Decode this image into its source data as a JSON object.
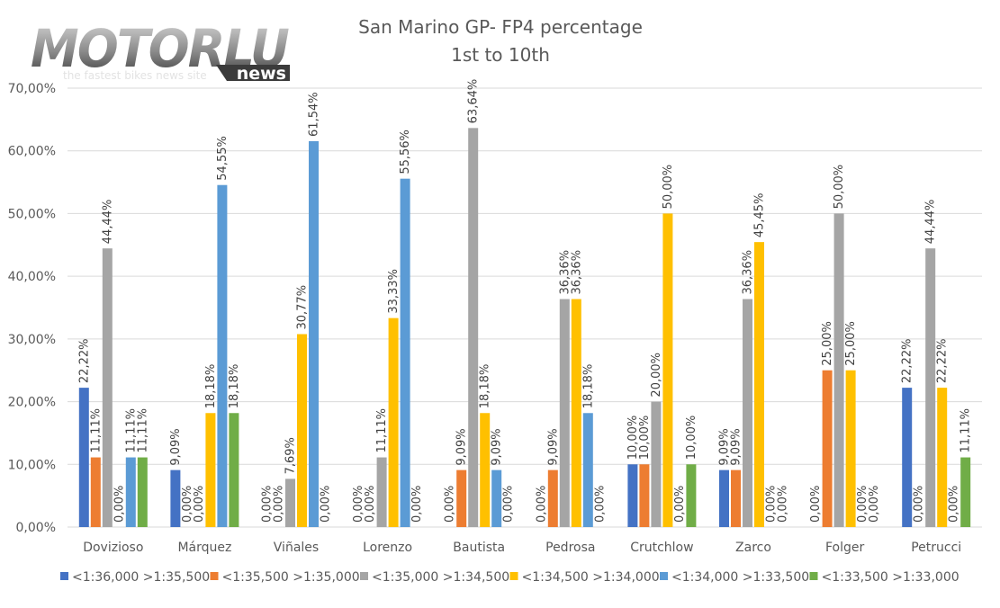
{
  "logo": {
    "brand": "MOTORLU",
    "badge": "news",
    "tagline": "the fastest bikes news site"
  },
  "chart_data": {
    "type": "bar",
    "title": "San Marino GP- FP4 percentage",
    "subtitle": "1st to 10th",
    "xlabel": "",
    "ylabel": "",
    "ylim": [
      0,
      70
    ],
    "yticks": [
      0,
      10,
      20,
      30,
      40,
      50,
      60,
      70
    ],
    "ytick_labels": [
      "0,00%",
      "10,00%",
      "20,00%",
      "30,00%",
      "40,00%",
      "50,00%",
      "60,00%",
      "70,00%"
    ],
    "grid": true,
    "legend_position": "bottom",
    "categories": [
      "Dovizioso",
      "Márquez",
      "Viñales",
      "Lorenzo",
      "Bautista",
      "Pedrosa",
      "Crutchlow",
      "Zarco",
      "Folger",
      "Petrucci"
    ],
    "series": [
      {
        "name": "<1:36,000 >1:35,500",
        "color": "#4472C4",
        "values": [
          22.22,
          9.09,
          0.0,
          0.0,
          0.0,
          0.0,
          10.0,
          9.09,
          0.0,
          22.22
        ]
      },
      {
        "name": "<1:35,500 >1:35,000",
        "color": "#ED7D31",
        "values": [
          11.11,
          0.0,
          0.0,
          0.0,
          9.09,
          9.09,
          10.0,
          9.09,
          25.0,
          0.0
        ]
      },
      {
        "name": "<1:35,000 >1:34,500",
        "color": "#A5A5A5",
        "values": [
          44.44,
          0.0,
          7.69,
          11.11,
          63.64,
          36.36,
          20.0,
          36.36,
          50.0,
          44.44
        ]
      },
      {
        "name": "<1:34,500 >1:34,000",
        "color": "#FFC000",
        "values": [
          0.0,
          18.18,
          30.77,
          33.33,
          18.18,
          36.36,
          50.0,
          45.45,
          25.0,
          22.22
        ]
      },
      {
        "name": "<1:34,000 >1:33,500",
        "color": "#5B9BD5",
        "values": [
          11.11,
          54.55,
          61.54,
          55.56,
          9.09,
          18.18,
          0.0,
          0.0,
          0.0,
          0.0
        ]
      },
      {
        "name": "<1:33,500 >1:33,000",
        "color": "#70AD47",
        "values": [
          11.11,
          18.18,
          0.0,
          0.0,
          0.0,
          0.0,
          10.0,
          0.0,
          0.0,
          11.11
        ]
      }
    ],
    "data_labels": [
      [
        "22,22%",
        "9,09%",
        "0,00%",
        "0,00%",
        "0,00%",
        "0,00%",
        "10,00%",
        "9,09%",
        "0,00%",
        "22,22%"
      ],
      [
        "11,11%",
        "0,00%",
        "0,00%",
        "0,00%",
        "9,09%",
        "9,09%",
        "10,00%",
        "9,09%",
        "25,00%",
        "0,00%"
      ],
      [
        "44,44%",
        "0,00%",
        "7,69%",
        "11,11%",
        "63,64%",
        "36,36%",
        "20,00%",
        "36,36%",
        "50,00%",
        "44,44%"
      ],
      [
        "0,00%",
        "18,18%",
        "30,77%",
        "33,33%",
        "18,18%",
        "36,36%",
        "50,00%",
        "45,45%",
        "25,00%",
        "22,22%"
      ],
      [
        "11,11%",
        "54,55%",
        "61,54%",
        "55,56%",
        "9,09%",
        "18,18%",
        "0,00%",
        "0,00%",
        "0,00%",
        "0,00%"
      ],
      [
        "11,11%",
        "18,18%",
        "0,00%",
        "0,00%",
        "0,00%",
        "0,00%",
        "10,00%",
        "0,00%",
        "0,00%",
        "11,11%"
      ]
    ]
  }
}
